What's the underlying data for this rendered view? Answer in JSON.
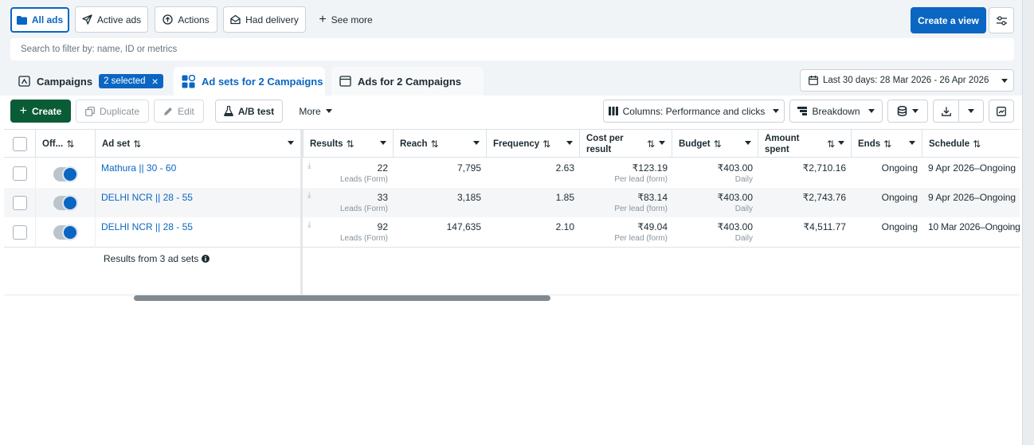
{
  "filters": {
    "all_ads": "All ads",
    "active_ads": "Active ads",
    "actions": "Actions",
    "had_delivery": "Had delivery",
    "see_more": "See more",
    "create_view": "Create a view"
  },
  "search": {
    "placeholder": "Search to filter by: name, ID or metrics"
  },
  "tabs": {
    "campaigns": "Campaigns",
    "selected_badge": "2 selected",
    "ad_sets": "Ad sets for 2 Campaigns",
    "ads": "Ads for 2 Campaigns"
  },
  "date_range": "Last 30 days: 28 Mar 2026 - 26 Apr 2026",
  "toolbar": {
    "create": "Create",
    "duplicate": "Duplicate",
    "edit": "Edit",
    "ab_test": "A/B test",
    "more": "More",
    "columns": "Columns: Performance and clicks",
    "breakdown": "Breakdown"
  },
  "columns": {
    "off": "Off...",
    "ad_set": "Ad set",
    "results": "Results",
    "reach": "Reach",
    "frequency": "Frequency",
    "cost_per_result_1": "Cost per",
    "cost_per_result_2": "result",
    "budget": "Budget",
    "amount_spent_1": "Amount",
    "amount_spent_2": "spent",
    "ends": "Ends",
    "schedule": "Schedule"
  },
  "rows": [
    {
      "name": "Mathura || 30 - 60",
      "results": "22",
      "results_sub": "Leads (Form)",
      "reach": "7,795",
      "frequency": "2.63",
      "cost": "₹123.19",
      "cost_sub": "Per lead (form)",
      "budget": "₹403.00",
      "budget_sub": "Daily",
      "spent": "₹2,710.16",
      "ends": "Ongoing",
      "schedule": "9 Apr 2026–Ongoing"
    },
    {
      "name": "DELHI NCR || 28 - 55",
      "results": "33",
      "results_sub": "Leads (Form)",
      "reach": "3,185",
      "frequency": "1.85",
      "cost": "₹83.14",
      "cost_sub": "Per lead (form)",
      "budget": "₹403.00",
      "budget_sub": "Daily",
      "spent": "₹2,743.76",
      "ends": "Ongoing",
      "schedule": "9 Apr 2026–Ongoing"
    },
    {
      "name": "DELHI NCR || 28 - 55",
      "results": "92",
      "results_sub": "Leads (Form)",
      "reach": "147,635",
      "frequency": "2.10",
      "cost": "₹49.04",
      "cost_sub": "Per lead (form)",
      "budget": "₹403.00",
      "budget_sub": "Daily",
      "spent": "₹4,511.77",
      "ends": "Ongoing",
      "schedule": "10 Mar 2026–Ongoing"
    }
  ],
  "summary": "Results from 3 ad sets",
  "colors": {
    "accent": "#0a66c2",
    "create": "#0a5c36"
  }
}
